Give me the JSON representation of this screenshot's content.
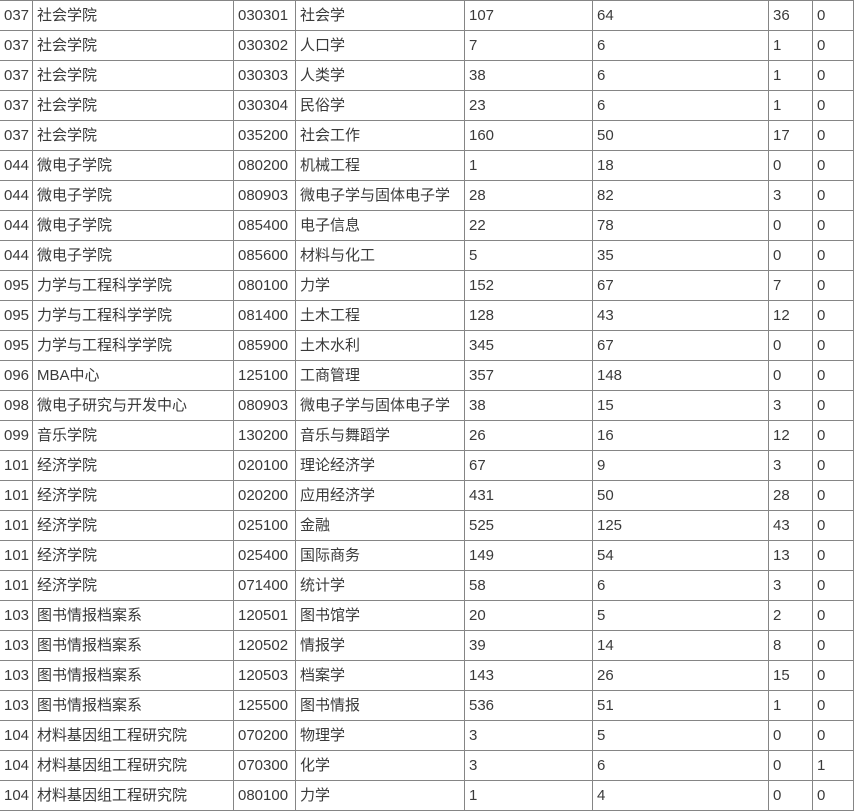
{
  "colors": {
    "border": "#858585",
    "text": "#3a3a3a",
    "background": "#ffffff"
  },
  "table": {
    "column_keys": [
      "dept-code",
      "dept-name",
      "major-code",
      "major-name",
      "count-1",
      "count-2",
      "count-3",
      "count-4"
    ],
    "rows": [
      [
        "037",
        "社会学院",
        "030301",
        "社会学",
        "107",
        "64",
        "36",
        "0"
      ],
      [
        "037",
        "社会学院",
        "030302",
        "人口学",
        "7",
        "6",
        "1",
        "0"
      ],
      [
        "037",
        "社会学院",
        "030303",
        "人类学",
        "38",
        "6",
        "1",
        "0"
      ],
      [
        "037",
        "社会学院",
        "030304",
        "民俗学",
        "23",
        "6",
        "1",
        "0"
      ],
      [
        "037",
        "社会学院",
        "035200",
        "社会工作",
        "160",
        "50",
        "17",
        "0"
      ],
      [
        "044",
        "微电子学院",
        "080200",
        "机械工程",
        "1",
        "18",
        "0",
        "0"
      ],
      [
        "044",
        "微电子学院",
        "080903",
        "微电子学与固体电子学",
        "28",
        "82",
        "3",
        "0"
      ],
      [
        "044",
        "微电子学院",
        "085400",
        "电子信息",
        "22",
        "78",
        "0",
        "0"
      ],
      [
        "044",
        "微电子学院",
        "085600",
        "材料与化工",
        "5",
        "35",
        "0",
        "0"
      ],
      [
        "095",
        "力学与工程科学学院",
        "080100",
        "力学",
        "152",
        "67",
        "7",
        "0"
      ],
      [
        "095",
        "力学与工程科学学院",
        "081400",
        "土木工程",
        "128",
        "43",
        "12",
        "0"
      ],
      [
        "095",
        "力学与工程科学学院",
        "085900",
        "土木水利",
        "345",
        "67",
        "0",
        "0"
      ],
      [
        "096",
        "MBA中心",
        "125100",
        "工商管理",
        "357",
        "148",
        "0",
        "0"
      ],
      [
        "098",
        "微电子研究与开发中心",
        "080903",
        "微电子学与固体电子学",
        "38",
        "15",
        "3",
        "0"
      ],
      [
        "099",
        "音乐学院",
        "130200",
        "音乐与舞蹈学",
        "26",
        "16",
        "12",
        "0"
      ],
      [
        "101",
        "经济学院",
        "020100",
        "理论经济学",
        "67",
        "9",
        "3",
        "0"
      ],
      [
        "101",
        "经济学院",
        "020200",
        "应用经济学",
        "431",
        "50",
        "28",
        "0"
      ],
      [
        "101",
        "经济学院",
        "025100",
        "金融",
        "525",
        "125",
        "43",
        "0"
      ],
      [
        "101",
        "经济学院",
        "025400",
        "国际商务",
        "149",
        "54",
        "13",
        "0"
      ],
      [
        "101",
        "经济学院",
        "071400",
        "统计学",
        "58",
        "6",
        "3",
        "0"
      ],
      [
        "103",
        "图书情报档案系",
        "120501",
        "图书馆学",
        "20",
        "5",
        "2",
        "0"
      ],
      [
        "103",
        "图书情报档案系",
        "120502",
        "情报学",
        "39",
        "14",
        "8",
        "0"
      ],
      [
        "103",
        "图书情报档案系",
        "120503",
        "档案学",
        "143",
        "26",
        "15",
        "0"
      ],
      [
        "103",
        "图书情报档案系",
        "125500",
        "图书情报",
        "536",
        "51",
        "1",
        "0"
      ],
      [
        "104",
        "材料基因组工程研究院",
        "070200",
        "物理学",
        "3",
        "5",
        "0",
        "0"
      ],
      [
        "104",
        "材料基因组工程研究院",
        "070300",
        "化学",
        "3",
        "6",
        "0",
        "1"
      ],
      [
        "104",
        "材料基因组工程研究院",
        "080100",
        "力学",
        "1",
        "4",
        "0",
        "0"
      ]
    ]
  }
}
